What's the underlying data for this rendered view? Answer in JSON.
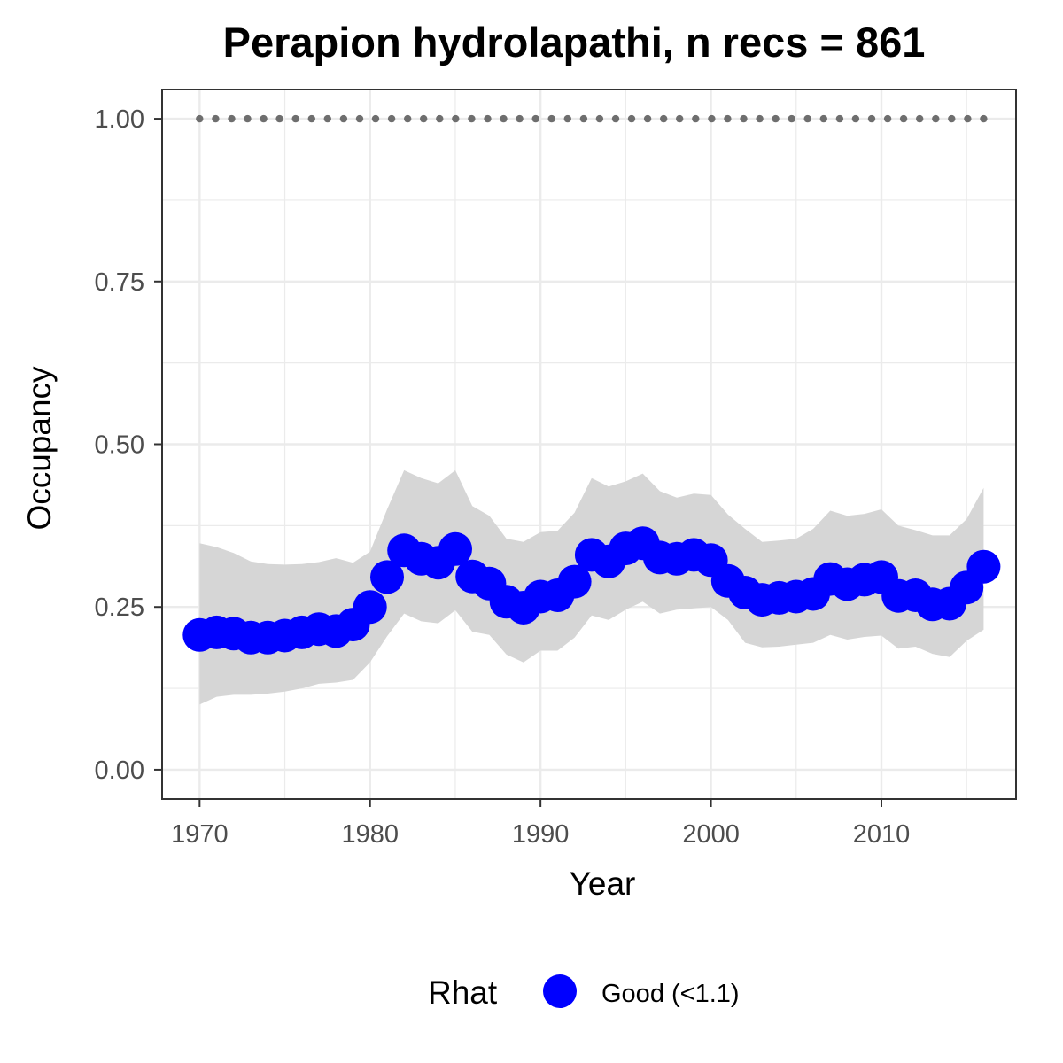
{
  "chart_data": {
    "type": "line",
    "title": "Perapion hydrolapathi, n recs = 861",
    "xlabel": "Year",
    "ylabel": "Occupancy",
    "xlim": [
      1967.8,
      2017.9
    ],
    "ylim": [
      -0.045,
      1.045
    ],
    "x_ticks": [
      1970,
      1980,
      1990,
      2000,
      2010
    ],
    "x_tick_labels": [
      "1970",
      "1980",
      "1990",
      "2000",
      "2010"
    ],
    "y_ticks": [
      0,
      0.25,
      0.5,
      0.75,
      1.0
    ],
    "y_tick_labels": [
      "0.00",
      "0.25",
      "0.50",
      "0.75",
      "1.00"
    ],
    "grid": true,
    "legend": {
      "title": "Rhat",
      "position": "bottom",
      "entries": [
        {
          "label": "Good (<1.1)",
          "color": "#0000ff"
        }
      ]
    },
    "colors": {
      "points": "#0000ff",
      "ribbon": "#d6d6d6",
      "reference": "#6e6e6e",
      "grid": "#ebebeb",
      "panel_border": "#333333"
    },
    "reference_line": {
      "y": 1.0,
      "style": "dotted"
    },
    "series": [
      {
        "x": [
          1970,
          1971,
          1972,
          1973,
          1974,
          1975,
          1976,
          1977,
          1978,
          1979,
          1980,
          1981,
          1982,
          1983,
          1984,
          1985,
          1986,
          1987,
          1988,
          1989,
          1990,
          1991,
          1992,
          1993,
          1994,
          1995,
          1996,
          1997,
          1998,
          1999,
          2000,
          2001,
          2002,
          2003,
          2004,
          2005,
          2006,
          2007,
          2008,
          2009,
          2010,
          2011,
          2012,
          2013,
          2014,
          2015,
          2016
        ],
        "y": [
          0.207,
          0.211,
          0.209,
          0.203,
          0.203,
          0.206,
          0.211,
          0.216,
          0.213,
          0.223,
          0.25,
          0.296,
          0.337,
          0.324,
          0.318,
          0.339,
          0.297,
          0.286,
          0.258,
          0.249,
          0.266,
          0.268,
          0.289,
          0.33,
          0.32,
          0.34,
          0.348,
          0.326,
          0.324,
          0.33,
          0.322,
          0.29,
          0.272,
          0.261,
          0.264,
          0.266,
          0.27,
          0.293,
          0.285,
          0.292,
          0.296,
          0.267,
          0.268,
          0.254,
          0.255,
          0.28,
          0.312
        ],
        "lower": [
          0.1,
          0.112,
          0.115,
          0.115,
          0.117,
          0.12,
          0.125,
          0.132,
          0.134,
          0.138,
          0.165,
          0.205,
          0.24,
          0.228,
          0.225,
          0.245,
          0.212,
          0.207,
          0.177,
          0.165,
          0.183,
          0.183,
          0.203,
          0.237,
          0.23,
          0.246,
          0.258,
          0.24,
          0.246,
          0.248,
          0.25,
          0.23,
          0.195,
          0.188,
          0.189,
          0.192,
          0.195,
          0.207,
          0.2,
          0.204,
          0.206,
          0.186,
          0.189,
          0.178,
          0.173,
          0.198,
          0.215
        ],
        "upper": [
          0.348,
          0.342,
          0.333,
          0.32,
          0.316,
          0.315,
          0.316,
          0.319,
          0.325,
          0.318,
          0.335,
          0.4,
          0.46,
          0.448,
          0.44,
          0.46,
          0.405,
          0.39,
          0.355,
          0.35,
          0.365,
          0.367,
          0.395,
          0.448,
          0.435,
          0.443,
          0.455,
          0.428,
          0.418,
          0.424,
          0.422,
          0.392,
          0.37,
          0.35,
          0.352,
          0.355,
          0.37,
          0.398,
          0.39,
          0.393,
          0.4,
          0.375,
          0.368,
          0.36,
          0.36,
          0.385,
          0.433
        ]
      }
    ]
  }
}
